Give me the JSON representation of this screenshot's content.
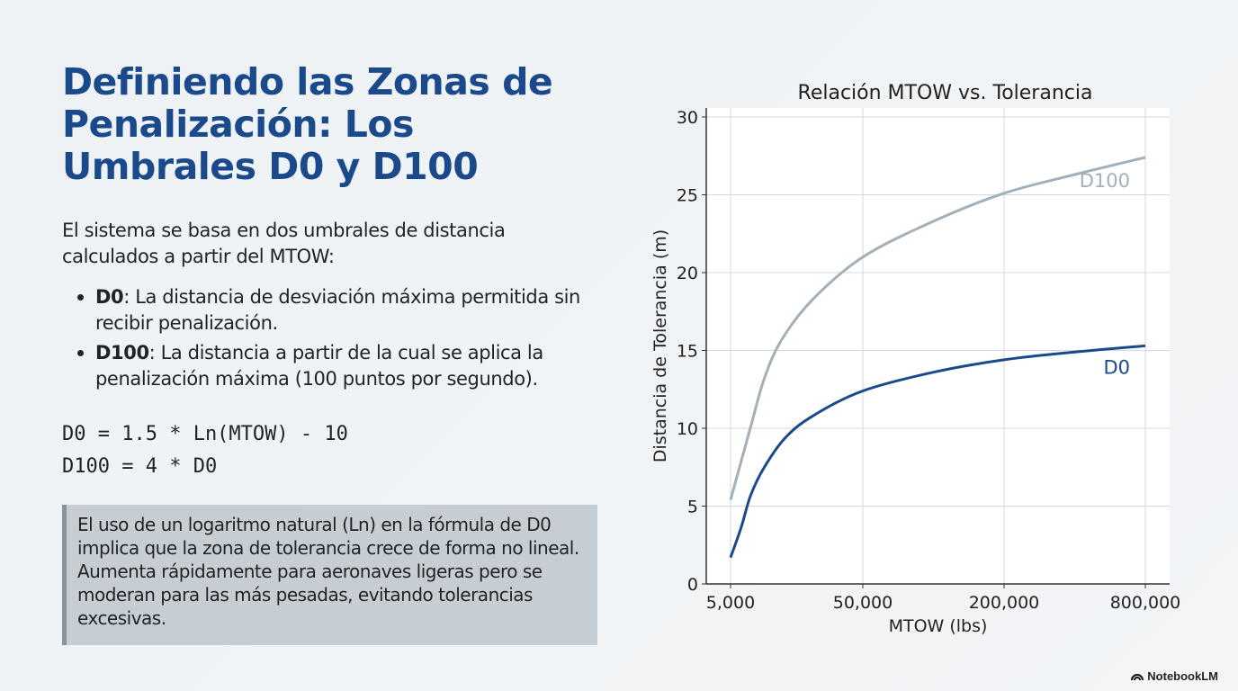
{
  "slide": {
    "title": "Definiendo las Zonas de Penalización: Los Umbrales D0 y D100",
    "intro": "El sistema se basa en dos umbrales de distancia calculados a partir del MTOW:",
    "bullets": [
      {
        "term": "D0",
        "text": ": La distancia de desviación máxima permitida sin recibir penalización."
      },
      {
        "term": "D100",
        "text": ": La distancia a partir de la cual se aplica la penalización máxima (100 puntos por segundo)."
      }
    ],
    "formulas": [
      "D0 = 1.5 * Ln(MTOW) - 10",
      "D100 = 4 * D0"
    ],
    "callout": "El uso de un logaritmo natural (Ln) en la fórmula de D0 implica que la zona de tolerancia crece de forma no lineal. Aumenta rápidamente para aeronaves ligeras pero se moderan para las más pesadas, evitando tolerancias excesivas.",
    "logo": "NotebookLM"
  },
  "colors": {
    "title": "#1b4a8c",
    "d0": "#1b4a8c",
    "d100": "#a3b0ba"
  },
  "chart_data": {
    "type": "line",
    "title": "Relación MTOW vs. Tolerancia",
    "xlabel": "MTOW (lbs)",
    "ylabel": "Distancia de Tolerancia (m)",
    "x_ticks": [
      5000,
      50000,
      200000,
      800000
    ],
    "x_tick_labels": [
      "5,000",
      "50,000",
      "200,000",
      "800,000"
    ],
    "y_ticks": [
      0,
      5,
      10,
      15,
      20,
      25,
      30
    ],
    "y_tick_labels": [
      "0",
      "5",
      "10",
      "15",
      "20",
      "25",
      "30"
    ],
    "ylim": [
      0,
      30
    ],
    "grid": true,
    "series": [
      {
        "name": "D100",
        "points": [
          [
            5000,
            5.4
          ],
          [
            7100,
            10.1
          ],
          [
            9000,
            13.2
          ],
          [
            12200,
            15.7
          ],
          [
            21000,
            18.3
          ],
          [
            50000,
            21.0
          ],
          [
            100000,
            23.3
          ],
          [
            200000,
            25.1
          ],
          [
            400000,
            26.3
          ],
          [
            800000,
            27.4
          ]
        ]
      },
      {
        "name": "D0",
        "points": [
          [
            5000,
            1.7
          ],
          [
            6000,
            3.6
          ],
          [
            7100,
            5.7
          ],
          [
            9000,
            7.5
          ],
          [
            13000,
            9.4
          ],
          [
            21000,
            10.8
          ],
          [
            50000,
            12.4
          ],
          [
            100000,
            13.6
          ],
          [
            200000,
            14.4
          ],
          [
            400000,
            14.9
          ],
          [
            800000,
            15.3
          ]
        ]
      }
    ]
  }
}
